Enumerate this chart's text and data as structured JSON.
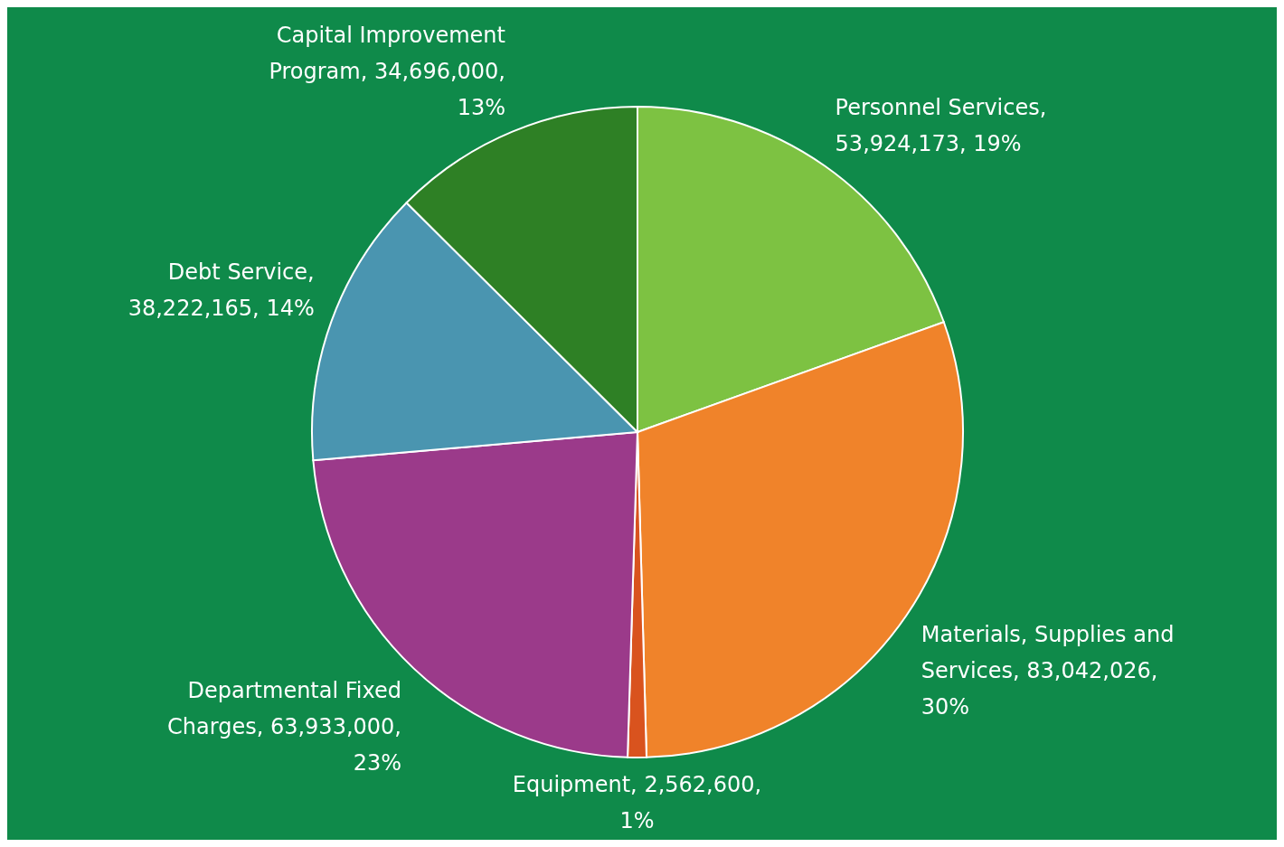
{
  "chart_data": {
    "type": "pie",
    "categories": [
      "Personnel Services",
      "Materials, Supplies and Services",
      "Equipment",
      "Departmental Fixed Charges",
      "Debt Service",
      "Capital Improvement Program"
    ],
    "values": [
      53924173,
      83042026,
      2562600,
      63933000,
      38222165,
      34696000
    ],
    "colors": [
      "#7dc242",
      "#f0832a",
      "#d9531e",
      "#9b3a8a",
      "#4a95b0",
      "#2e8025"
    ],
    "value_labels": [
      ", 53,924,173, 19%",
      ", 83,042,026, 30%",
      ", 2,562,600, 1%",
      ", 63,933,000, 23%",
      ", 38,222,165, 14%",
      ", 34,696,000, 13%"
    ]
  }
}
